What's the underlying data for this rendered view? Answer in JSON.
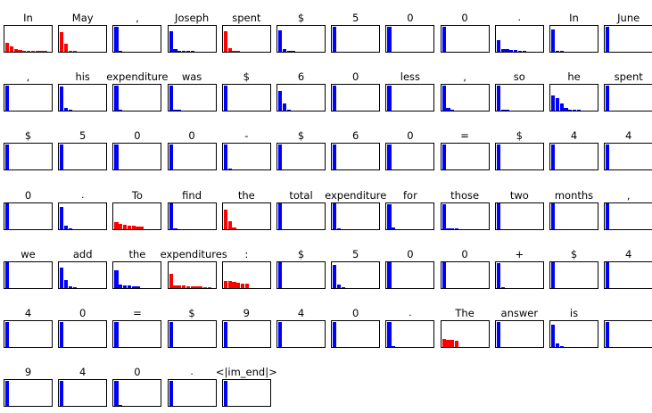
{
  "colors": {
    "top_token": "#0000ff",
    "other_token": "#ff0000",
    "axes": "#000000",
    "background": "#ffffff"
  },
  "chart_data": {
    "type": "bar",
    "description_grid": {
      "columns": 12
    },
    "ylim": [
      0,
      1
    ],
    "bars_per_panel": 10,
    "panels": [
      {
        "token": "In",
        "color": "red",
        "values": [
          0.35,
          0.22,
          0.12,
          0.08,
          0.05,
          0.04,
          0.03,
          0.02,
          0.02,
          0.01
        ]
      },
      {
        "token": "May",
        "color": "red",
        "values": [
          0.75,
          0.3,
          0.02,
          0.01,
          0,
          0,
          0,
          0,
          0,
          0
        ]
      },
      {
        "token": ",",
        "color": "blue",
        "values": [
          0.98,
          0.01,
          0,
          0,
          0,
          0,
          0,
          0,
          0,
          0
        ]
      },
      {
        "token": "Joseph",
        "color": "blue",
        "values": [
          0.8,
          0.1,
          0.05,
          0.03,
          0.02,
          0.01,
          0,
          0,
          0,
          0
        ]
      },
      {
        "token": "spent",
        "color": "red",
        "values": [
          0.78,
          0.15,
          0.05,
          0.02,
          0,
          0,
          0,
          0,
          0,
          0
        ]
      },
      {
        "token": "$",
        "color": "blue",
        "values": [
          0.82,
          0.12,
          0.03,
          0.01,
          0,
          0,
          0,
          0,
          0,
          0
        ]
      },
      {
        "token": "5",
        "color": "blue",
        "values": [
          0.98,
          0,
          0,
          0,
          0,
          0,
          0,
          0,
          0,
          0
        ]
      },
      {
        "token": "0",
        "color": "blue",
        "values": [
          0.98,
          0,
          0,
          0,
          0,
          0,
          0,
          0,
          0,
          0
        ]
      },
      {
        "token": "0",
        "color": "blue",
        "values": [
          0.98,
          0,
          0,
          0,
          0,
          0,
          0,
          0,
          0,
          0
        ]
      },
      {
        "token": ".",
        "color": "blue",
        "values": [
          0.45,
          0.12,
          0.1,
          0.07,
          0.06,
          0.05,
          0.03,
          0,
          0,
          0
        ]
      },
      {
        "token": "In",
        "color": "blue",
        "values": [
          0.85,
          0.02,
          0.01,
          0,
          0,
          0,
          0,
          0,
          0,
          0
        ]
      },
      {
        "token": "June",
        "color": "blue",
        "values": [
          0.98,
          0,
          0,
          0,
          0,
          0,
          0,
          0,
          0,
          0
        ]
      },
      {
        "token": ",",
        "color": "blue",
        "values": [
          0.98,
          0,
          0,
          0,
          0,
          0,
          0,
          0,
          0,
          0
        ]
      },
      {
        "token": "his",
        "color": "blue",
        "values": [
          0.95,
          0.1,
          0.04,
          0,
          0,
          0,
          0,
          0,
          0,
          0
        ]
      },
      {
        "token": "expenditure",
        "color": "blue",
        "values": [
          0.97,
          0.02,
          0,
          0,
          0,
          0,
          0,
          0,
          0,
          0
        ]
      },
      {
        "token": "was",
        "color": "blue",
        "values": [
          0.97,
          0.04,
          0.02,
          0,
          0,
          0,
          0,
          0,
          0,
          0
        ]
      },
      {
        "token": "$",
        "color": "blue",
        "values": [
          0.98,
          0,
          0,
          0,
          0,
          0,
          0,
          0,
          0,
          0
        ]
      },
      {
        "token": "6",
        "color": "blue",
        "values": [
          0.75,
          0.3,
          0.01,
          0,
          0,
          0,
          0,
          0,
          0,
          0
        ]
      },
      {
        "token": "0",
        "color": "blue",
        "values": [
          0.98,
          0,
          0,
          0,
          0,
          0,
          0,
          0,
          0,
          0
        ]
      },
      {
        "token": "less",
        "color": "blue",
        "values": [
          0.98,
          0,
          0,
          0,
          0,
          0,
          0,
          0,
          0,
          0
        ]
      },
      {
        "token": ",",
        "color": "blue",
        "values": [
          0.97,
          0.12,
          0.03,
          0,
          0,
          0,
          0,
          0,
          0,
          0
        ]
      },
      {
        "token": "so",
        "color": "blue",
        "values": [
          0.97,
          0.05,
          0.01,
          0,
          0,
          0,
          0,
          0,
          0,
          0
        ]
      },
      {
        "token": "he",
        "color": "blue",
        "values": [
          0.6,
          0.5,
          0.28,
          0.1,
          0.04,
          0.02,
          0.01,
          0,
          0,
          0
        ]
      },
      {
        "token": "spent",
        "color": "blue",
        "values": [
          0.98,
          0,
          0,
          0,
          0,
          0,
          0,
          0,
          0,
          0
        ]
      },
      {
        "token": "$",
        "color": "blue",
        "values": [
          0.98,
          0,
          0,
          0,
          0,
          0,
          0,
          0,
          0,
          0
        ]
      },
      {
        "token": "5",
        "color": "blue",
        "values": [
          0.98,
          0,
          0,
          0,
          0,
          0,
          0,
          0,
          0,
          0
        ]
      },
      {
        "token": "0",
        "color": "blue",
        "values": [
          0.98,
          0,
          0,
          0,
          0,
          0,
          0,
          0,
          0,
          0
        ]
      },
      {
        "token": "0",
        "color": "blue",
        "values": [
          0.98,
          0,
          0,
          0,
          0,
          0,
          0,
          0,
          0,
          0
        ]
      },
      {
        "token": "-",
        "color": "blue",
        "values": [
          0.97,
          0.02,
          0,
          0,
          0,
          0,
          0,
          0,
          0,
          0
        ]
      },
      {
        "token": "$",
        "color": "blue",
        "values": [
          0.98,
          0,
          0,
          0,
          0,
          0,
          0,
          0,
          0,
          0
        ]
      },
      {
        "token": "6",
        "color": "blue",
        "values": [
          0.98,
          0,
          0,
          0,
          0,
          0,
          0,
          0,
          0,
          0
        ]
      },
      {
        "token": "0",
        "color": "blue",
        "values": [
          0.98,
          0,
          0,
          0,
          0,
          0,
          0,
          0,
          0,
          0
        ]
      },
      {
        "token": "=",
        "color": "blue",
        "values": [
          0.98,
          0,
          0,
          0,
          0,
          0,
          0,
          0,
          0,
          0
        ]
      },
      {
        "token": "$",
        "color": "blue",
        "values": [
          0.98,
          0,
          0,
          0,
          0,
          0,
          0,
          0,
          0,
          0
        ]
      },
      {
        "token": "4",
        "color": "blue",
        "values": [
          0.98,
          0,
          0,
          0,
          0,
          0,
          0,
          0,
          0,
          0
        ]
      },
      {
        "token": "4",
        "color": "blue",
        "values": [
          0.98,
          0,
          0,
          0,
          0,
          0,
          0,
          0,
          0,
          0
        ]
      },
      {
        "token": "0",
        "color": "blue",
        "values": [
          0.98,
          0,
          0,
          0,
          0,
          0,
          0,
          0,
          0,
          0
        ]
      },
      {
        "token": ".",
        "color": "blue",
        "values": [
          0.85,
          0.12,
          0.02,
          0,
          0,
          0,
          0,
          0,
          0,
          0
        ]
      },
      {
        "token": "To",
        "color": "red",
        "values": [
          0.25,
          0.2,
          0.17,
          0.14,
          0.12,
          0.1,
          0.08,
          0,
          0,
          0
        ]
      },
      {
        "token": "find",
        "color": "blue",
        "values": [
          0.97,
          0.03,
          0,
          0,
          0,
          0,
          0,
          0,
          0,
          0
        ]
      },
      {
        "token": "the",
        "color": "red",
        "values": [
          0.75,
          0.3,
          0.04,
          0,
          0,
          0,
          0,
          0,
          0,
          0
        ]
      },
      {
        "token": "total",
        "color": "blue",
        "values": [
          0.98,
          0,
          0,
          0,
          0,
          0,
          0,
          0,
          0,
          0
        ]
      },
      {
        "token": "expenditure",
        "color": "blue",
        "values": [
          0.97,
          0.02,
          0,
          0,
          0,
          0,
          0,
          0,
          0,
          0
        ]
      },
      {
        "token": "for",
        "color": "blue",
        "values": [
          0.95,
          0.04,
          0,
          0,
          0,
          0,
          0,
          0,
          0,
          0
        ]
      },
      {
        "token": "those",
        "color": "blue",
        "values": [
          0.95,
          0.02,
          0.02,
          0.01,
          0,
          0,
          0,
          0,
          0,
          0
        ]
      },
      {
        "token": "two",
        "color": "blue",
        "values": [
          0.98,
          0,
          0,
          0,
          0,
          0,
          0,
          0,
          0,
          0
        ]
      },
      {
        "token": "months",
        "color": "blue",
        "values": [
          0.98,
          0,
          0,
          0,
          0,
          0,
          0,
          0,
          0,
          0
        ]
      },
      {
        "token": ",",
        "color": "blue",
        "values": [
          0.98,
          0,
          0,
          0,
          0,
          0,
          0,
          0,
          0,
          0
        ]
      },
      {
        "token": "we",
        "color": "blue",
        "values": [
          0.98,
          0,
          0,
          0,
          0,
          0,
          0,
          0,
          0,
          0
        ]
      },
      {
        "token": "add",
        "color": "blue",
        "values": [
          0.8,
          0.3,
          0.06,
          0.02,
          0,
          0,
          0,
          0,
          0,
          0
        ]
      },
      {
        "token": "the",
        "color": "blue",
        "values": [
          0.7,
          0.12,
          0.1,
          0.08,
          0.07,
          0.05,
          0,
          0,
          0,
          0
        ]
      },
      {
        "token": "expenditures",
        "color": "red",
        "values": [
          0.55,
          0.1,
          0.09,
          0.08,
          0.07,
          0.06,
          0.05,
          0.05,
          0.04,
          0.03
        ]
      },
      {
        "token": ":",
        "color": "red",
        "values": [
          0.28,
          0.26,
          0.24,
          0.2,
          0.18,
          0.15,
          0,
          0,
          0,
          0
        ]
      },
      {
        "token": "$",
        "color": "blue",
        "values": [
          0.98,
          0,
          0,
          0,
          0,
          0,
          0,
          0,
          0,
          0
        ]
      },
      {
        "token": "5",
        "color": "blue",
        "values": [
          0.88,
          0.14,
          0.02,
          0,
          0,
          0,
          0,
          0,
          0,
          0
        ]
      },
      {
        "token": "0",
        "color": "blue",
        "values": [
          0.98,
          0,
          0,
          0,
          0,
          0,
          0,
          0,
          0,
          0
        ]
      },
      {
        "token": "0",
        "color": "blue",
        "values": [
          0.98,
          0,
          0,
          0,
          0,
          0,
          0,
          0,
          0,
          0
        ]
      },
      {
        "token": "+",
        "color": "blue",
        "values": [
          0.97,
          0.02,
          0,
          0,
          0,
          0,
          0,
          0,
          0,
          0
        ]
      },
      {
        "token": "$",
        "color": "blue",
        "values": [
          0.98,
          0,
          0,
          0,
          0,
          0,
          0,
          0,
          0,
          0
        ]
      },
      {
        "token": "4",
        "color": "blue",
        "values": [
          0.98,
          0,
          0,
          0,
          0,
          0,
          0,
          0,
          0,
          0
        ]
      },
      {
        "token": "4",
        "color": "blue",
        "values": [
          0.98,
          0,
          0,
          0,
          0,
          0,
          0,
          0,
          0,
          0
        ]
      },
      {
        "token": "0",
        "color": "blue",
        "values": [
          0.98,
          0,
          0,
          0,
          0,
          0,
          0,
          0,
          0,
          0
        ]
      },
      {
        "token": "=",
        "color": "blue",
        "values": [
          0.98,
          0,
          0,
          0,
          0,
          0,
          0,
          0,
          0,
          0
        ]
      },
      {
        "token": "$",
        "color": "blue",
        "values": [
          0.98,
          0,
          0,
          0,
          0,
          0,
          0,
          0,
          0,
          0
        ]
      },
      {
        "token": "9",
        "color": "blue",
        "values": [
          0.98,
          0,
          0,
          0,
          0,
          0,
          0,
          0,
          0,
          0
        ]
      },
      {
        "token": "4",
        "color": "blue",
        "values": [
          0.98,
          0,
          0,
          0,
          0,
          0,
          0,
          0,
          0,
          0
        ]
      },
      {
        "token": "0",
        "color": "blue",
        "values": [
          0.98,
          0,
          0,
          0,
          0,
          0,
          0,
          0,
          0,
          0
        ]
      },
      {
        "token": ".",
        "color": "blue",
        "values": [
          0.98,
          0.05,
          0,
          0,
          0,
          0,
          0,
          0,
          0,
          0
        ]
      },
      {
        "token": "The",
        "color": "red",
        "values": [
          0.3,
          0.28,
          0.27,
          0.25,
          0,
          0,
          0,
          0,
          0,
          0
        ]
      },
      {
        "token": "answer",
        "color": "blue",
        "values": [
          0.98,
          0,
          0,
          0,
          0,
          0,
          0,
          0,
          0,
          0
        ]
      },
      {
        "token": "is",
        "color": "blue",
        "values": [
          0.85,
          0.15,
          0.02,
          0,
          0,
          0,
          0,
          0,
          0,
          0
        ]
      },
      {
        "token": "",
        "color": "blue",
        "values": [
          0.98,
          0,
          0,
          0,
          0,
          0,
          0,
          0,
          0,
          0
        ]
      },
      {
        "token": "9",
        "color": "blue",
        "values": [
          0.98,
          0,
          0,
          0,
          0,
          0,
          0,
          0,
          0,
          0
        ]
      },
      {
        "token": "4",
        "color": "blue",
        "values": [
          0.98,
          0,
          0,
          0,
          0,
          0,
          0,
          0,
          0,
          0
        ]
      },
      {
        "token": "0",
        "color": "blue",
        "values": [
          0.98,
          0.03,
          0,
          0,
          0,
          0,
          0,
          0,
          0,
          0
        ]
      },
      {
        "token": ".",
        "color": "blue",
        "values": [
          0.98,
          0,
          0,
          0,
          0,
          0,
          0,
          0,
          0,
          0
        ]
      },
      {
        "token": "<|im_end|>",
        "color": "blue",
        "values": [
          0.98,
          0,
          0,
          0,
          0,
          0,
          0,
          0,
          0,
          0
        ]
      }
    ]
  }
}
